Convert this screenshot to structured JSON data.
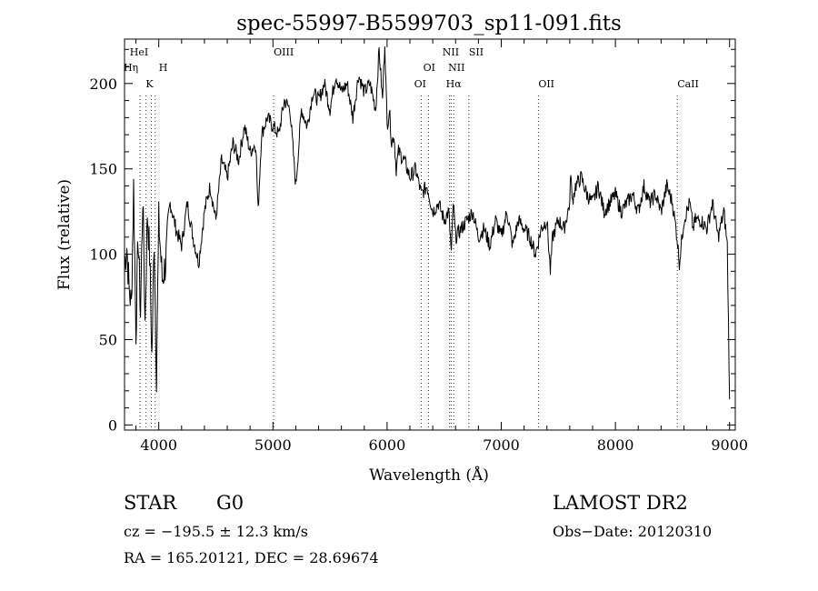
{
  "chart_data": {
    "type": "line",
    "title": "spec-55997-B5599703_sp11-091.fits",
    "xlabel": "Wavelength (Å)",
    "ylabel": "Flux (relative)",
    "xlim": [
      3700,
      9050
    ],
    "ylim": [
      -3,
      226
    ],
    "xticks": [
      4000,
      5000,
      6000,
      7000,
      8000,
      9000
    ],
    "yticks": [
      0,
      50,
      100,
      150,
      200
    ],
    "grid": false,
    "line_color": "#000000",
    "series": [
      {
        "x": [
          3700,
          3720,
          3740,
          3760,
          3780,
          3800,
          3820,
          3840,
          3860,
          3880,
          3900,
          3920,
          3940,
          3960,
          3980,
          4000,
          4030,
          4060,
          4100,
          4150,
          4200,
          4250,
          4300,
          4350,
          4400,
          4450,
          4500,
          4550,
          4600,
          4650,
          4700,
          4750,
          4800,
          4850,
          4870,
          4900,
          4950,
          5000,
          5050,
          5100,
          5150,
          5200,
          5250,
          5300,
          5350,
          5400,
          5450,
          5500,
          5550,
          5600,
          5650,
          5700,
          5750,
          5800,
          5850,
          5900,
          5930,
          5960,
          5980,
          6000,
          6020,
          6040,
          6060,
          6080,
          6100,
          6150,
          6200,
          6250,
          6300,
          6350,
          6400,
          6450,
          6500,
          6540,
          6563,
          6580,
          6600,
          6650,
          6700,
          6750,
          6800,
          6850,
          6900,
          6950,
          7000,
          7050,
          7100,
          7150,
          7200,
          7250,
          7300,
          7350,
          7400,
          7430,
          7450,
          7500,
          7550,
          7600,
          7610,
          7620,
          7650,
          7700,
          7750,
          7800,
          7850,
          7900,
          7950,
          8000,
          8050,
          8100,
          8150,
          8200,
          8250,
          8300,
          8350,
          8400,
          8450,
          8500,
          8540,
          8560,
          8600,
          8650,
          8680,
          8700,
          8750,
          8800,
          8850,
          8900,
          8950,
          8980,
          8990,
          9000
        ],
        "y": [
          95,
          105,
          80,
          70,
          140,
          55,
          110,
          65,
          135,
          60,
          125,
          100,
          40,
          110,
          30,
          120,
          85,
          95,
          130,
          115,
          105,
          130,
          110,
          95,
          125,
          140,
          120,
          155,
          145,
          165,
          155,
          175,
          160,
          165,
          125,
          170,
          180,
          175,
          170,
          190,
          185,
          140,
          185,
          175,
          195,
          190,
          200,
          185,
          205,
          195,
          200,
          180,
          205,
          195,
          200,
          185,
          220,
          190,
          225,
          175,
          185,
          165,
          170,
          150,
          160,
          155,
          145,
          150,
          135,
          140,
          125,
          130,
          120,
          125,
          100,
          130,
          110,
          115,
          120,
          125,
          110,
          115,
          105,
          120,
          110,
          125,
          105,
          120,
          115,
          110,
          100,
          115,
          120,
          90,
          110,
          120,
          115,
          130,
          150,
          130,
          140,
          145,
          135,
          130,
          140,
          125,
          130,
          135,
          125,
          130,
          135,
          125,
          140,
          130,
          135,
          125,
          140,
          130,
          110,
          95,
          120,
          130,
          115,
          120,
          120,
          115,
          130,
          110,
          125,
          105,
          60,
          15
        ]
      }
    ],
    "lines": [
      {
        "label": "HeI",
        "x": 3889
      },
      {
        "label": "Hη",
        "x": 3835
      },
      {
        "label": "H",
        "x": 3969
      },
      {
        "label": "K",
        "x": 3934
      },
      {
        "label": "OIII",
        "x": 5007
      },
      {
        "label": "OI",
        "x": 6300
      },
      {
        "label": "OI",
        "x": 6364
      },
      {
        "label": "NII",
        "x": 6548
      },
      {
        "label": "NII",
        "x": 6583
      },
      {
        "label": "Hα",
        "x": 6563
      },
      {
        "label": "SII",
        "x": 6716
      },
      {
        "label": "OII",
        "x": 7325
      },
      {
        "label": "CaII",
        "x": 8542
      }
    ]
  },
  "info": {
    "class": "STAR",
    "subclass": "G0",
    "cz": "cz = −195.5 ± 12.3 km/s",
    "coords": "RA = 165.20121, DEC =  28.69674",
    "survey": "LAMOST DR2",
    "obs_date": "Obs−Date: 20120310"
  }
}
